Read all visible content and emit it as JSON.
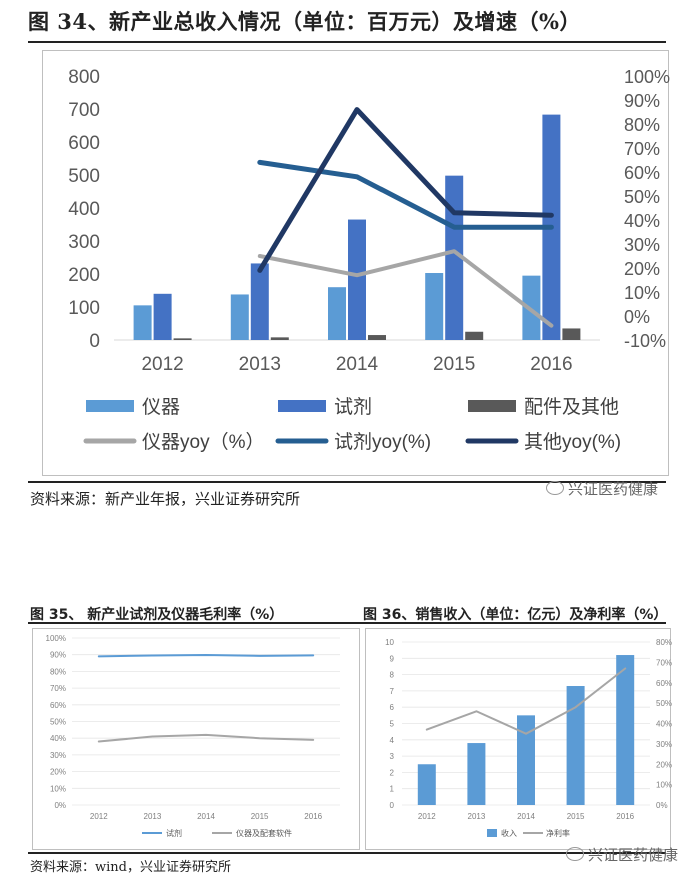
{
  "page": {
    "title": "图 34、新产业总收入情况（单位：百万元）及增速（%）",
    "source_main": "资料来源：新产业年报，兴业证券研究所",
    "source_bottom": "资料来源：wind，兴业证券研究所",
    "watermark": "兴证医药健康",
    "fig35_title": "图 35、 新产业试剂及仪器毛利率（%）",
    "fig36_title": "图 36、销售收入（单位：亿元）及净利率（%）"
  },
  "chart_data": [
    {
      "id": "fig34",
      "type": "bar",
      "categories": [
        "2012",
        "2013",
        "2014",
        "2015",
        "2016"
      ],
      "y_left": {
        "min": 0,
        "max": 800,
        "ticks": [
          "0",
          "100",
          "200",
          "300",
          "400",
          "500",
          "600",
          "700",
          "800"
        ]
      },
      "y_right": {
        "min": -10,
        "max": 100,
        "ticks": [
          "-10%",
          "0%",
          "10%",
          "20%",
          "30%",
          "40%",
          "50%",
          "60%",
          "70%",
          "80%",
          "90%",
          "100%"
        ]
      },
      "bar_series": [
        {
          "name": "仪器",
          "color": "#5b9bd5",
          "values": [
            105,
            138,
            160,
            203,
            195
          ]
        },
        {
          "name": "试剂",
          "color": "#4472c4",
          "values": [
            140,
            232,
            365,
            498,
            683
          ]
        },
        {
          "name": "配件及其他",
          "color": "#595959",
          "values": [
            5,
            8,
            15,
            25,
            35
          ]
        }
      ],
      "line_series": [
        {
          "name": "仪器yoy（%）",
          "color": "#a6a6a6",
          "values": [
            null,
            25,
            17,
            27,
            -4
          ]
        },
        {
          "name": "试剂yoy(%)",
          "color": "#255e91",
          "values": [
            null,
            64,
            58,
            37,
            37
          ]
        },
        {
          "name": "其他yoy(%)",
          "color": "#203864",
          "values": [
            null,
            19,
            86,
            43,
            42
          ]
        }
      ],
      "grid": false,
      "legend_position": "bottom"
    },
    {
      "id": "fig35",
      "type": "line",
      "categories": [
        "2012",
        "2013",
        "2014",
        "2015",
        "2016"
      ],
      "y": {
        "min": 0,
        "max": 100,
        "ticks": [
          "0%",
          "10%",
          "20%",
          "30%",
          "40%",
          "50%",
          "60%",
          "70%",
          "80%",
          "90%",
          "100%"
        ]
      },
      "series": [
        {
          "name": "试剂",
          "color": "#5b9bd5",
          "values": [
            89,
            89.5,
            89.8,
            89.3,
            89.6
          ]
        },
        {
          "name": "仪器及配套软件",
          "color": "#a6a6a6",
          "values": [
            38,
            41,
            42,
            40,
            39
          ]
        }
      ],
      "grid": true,
      "legend_position": "bottom"
    },
    {
      "id": "fig36",
      "type": "bar",
      "categories": [
        "2012",
        "2013",
        "2014",
        "2015",
        "2016"
      ],
      "y_left": {
        "min": 0,
        "max": 10,
        "ticks": [
          "0",
          "1",
          "2",
          "3",
          "4",
          "5",
          "6",
          "7",
          "8",
          "9",
          "10"
        ]
      },
      "y_right": {
        "min": 0,
        "max": 80,
        "ticks": [
          "0%",
          "10%",
          "20%",
          "30%",
          "40%",
          "50%",
          "60%",
          "70%",
          "80%"
        ]
      },
      "bar_series": [
        {
          "name": "收入",
          "color": "#5b9bd5",
          "values": [
            2.5,
            3.8,
            5.5,
            7.3,
            9.2
          ]
        }
      ],
      "line_series": [
        {
          "name": "净利率",
          "color": "#a6a6a6",
          "values": [
            37,
            46,
            35,
            48,
            67
          ]
        }
      ],
      "grid": true,
      "legend_position": "bottom"
    }
  ]
}
